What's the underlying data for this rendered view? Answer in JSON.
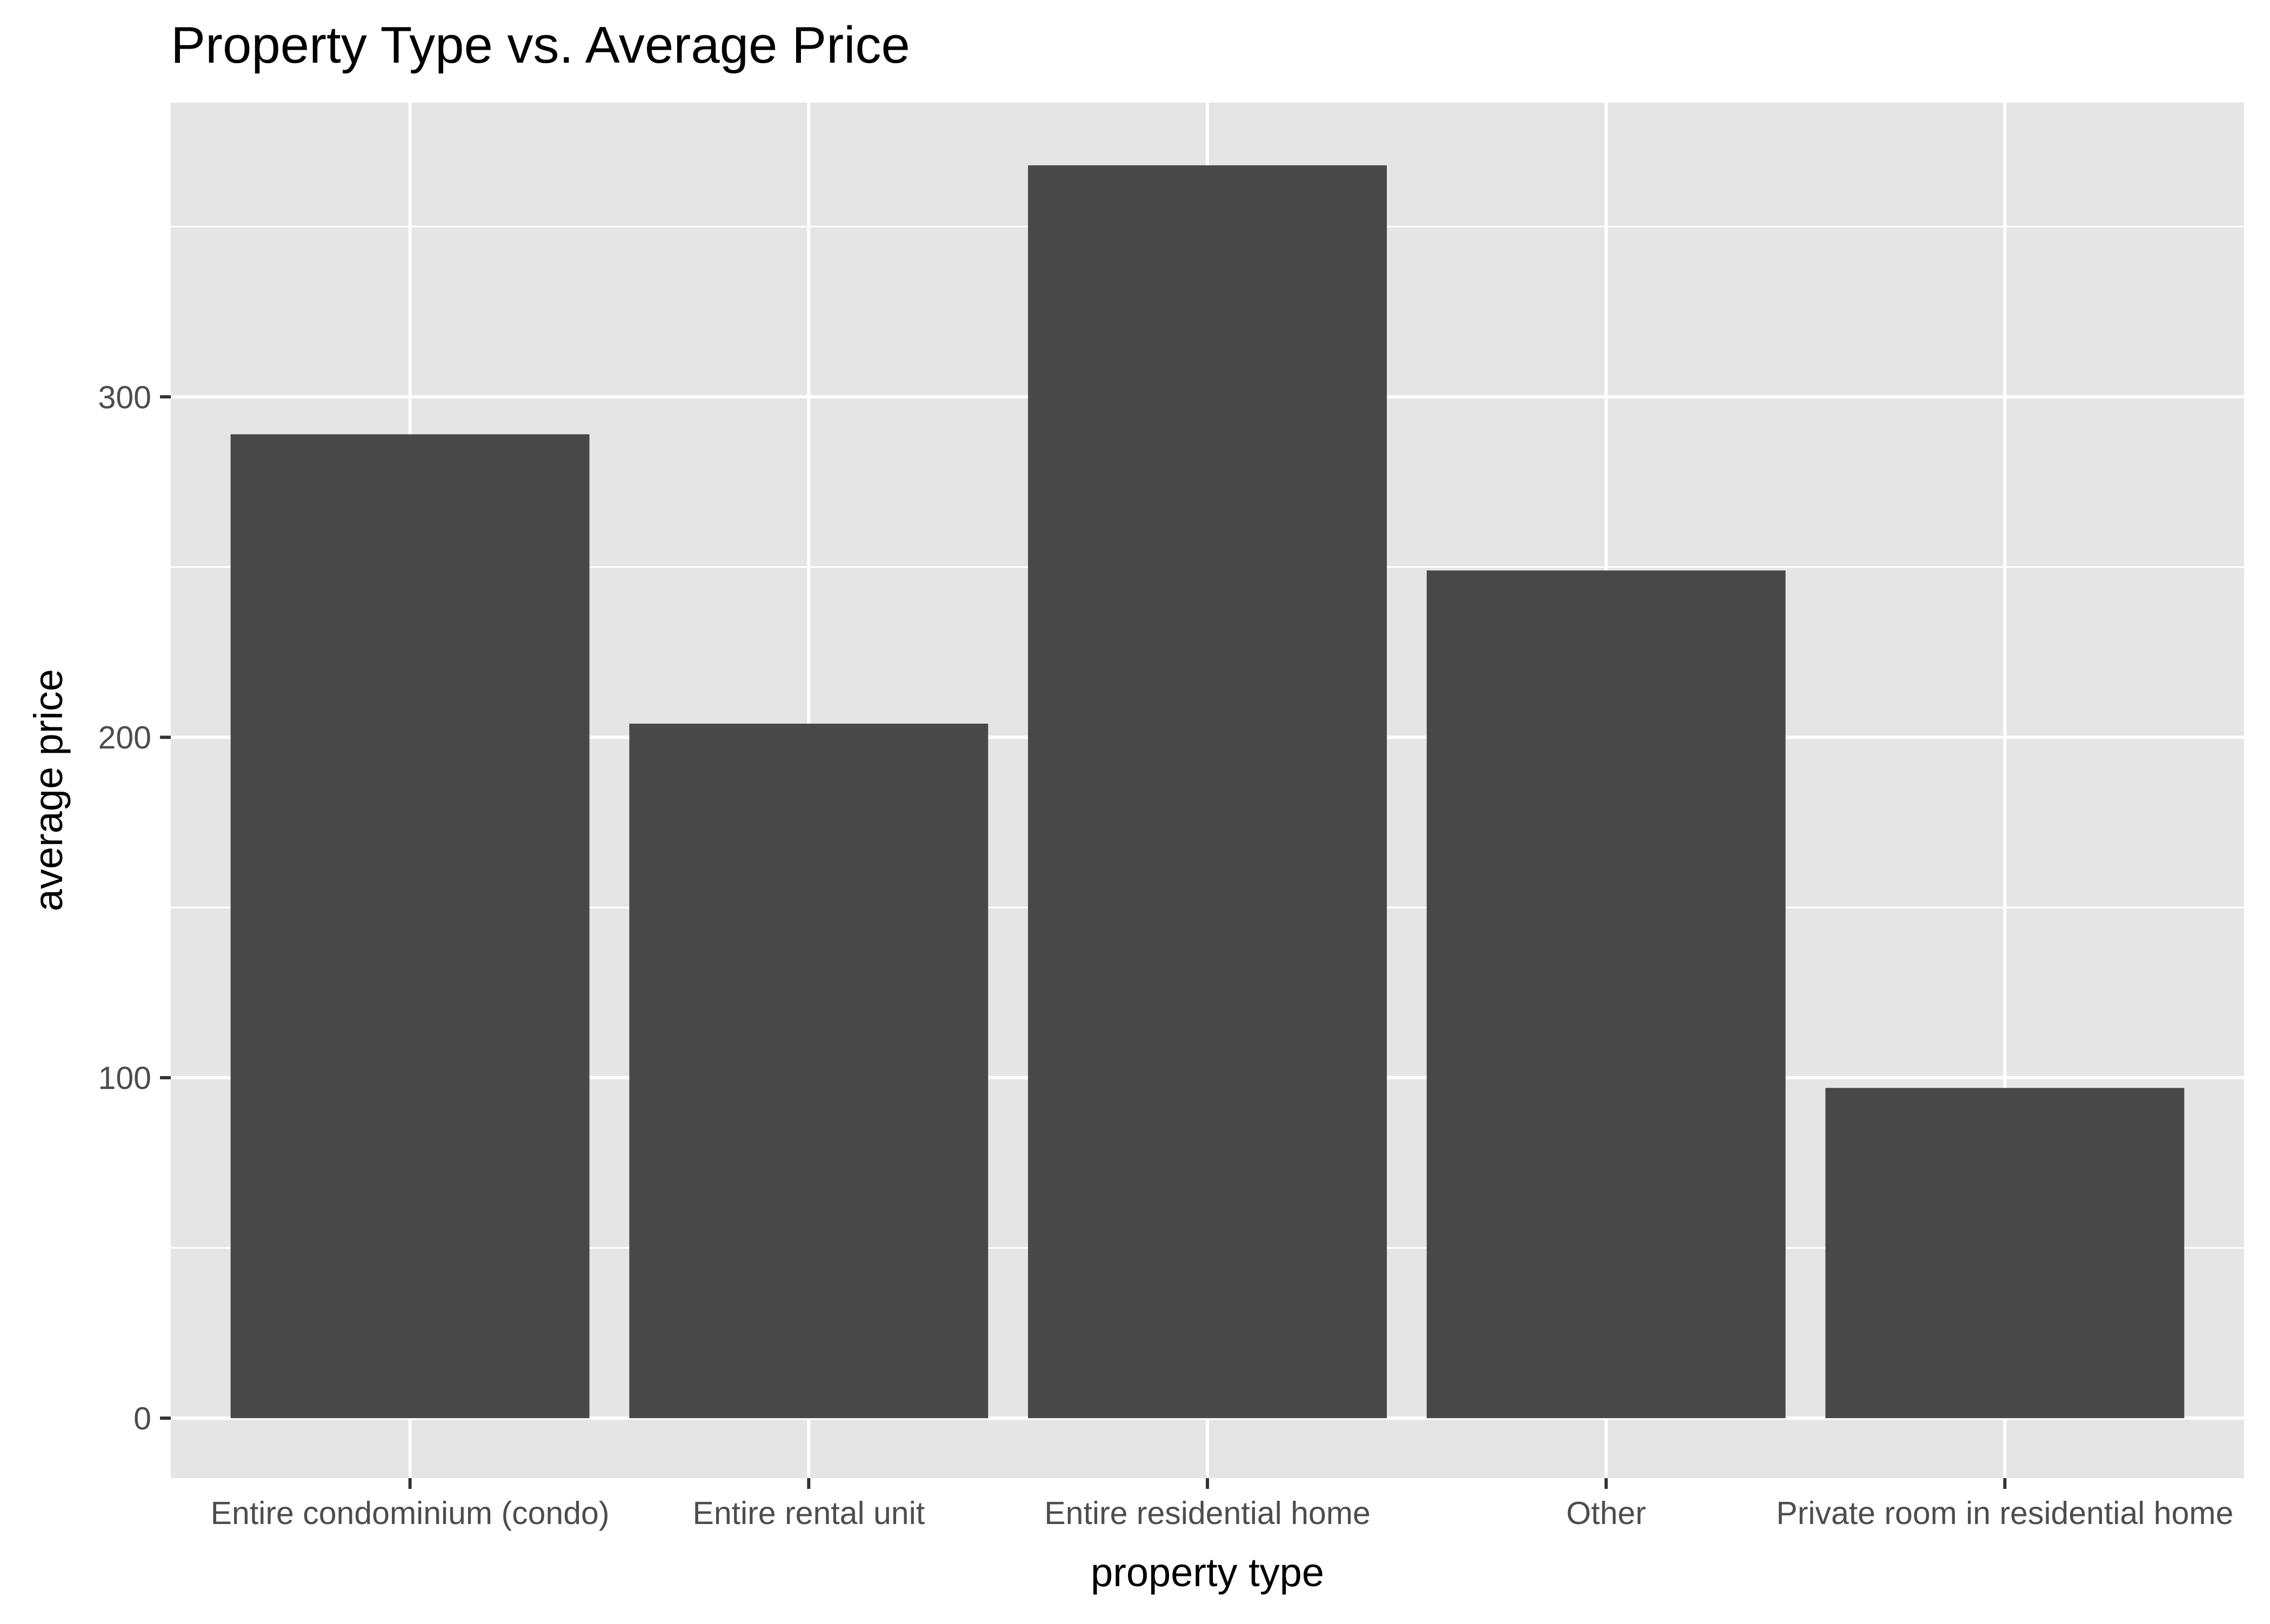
{
  "chart_data": {
    "type": "bar",
    "title": "Property Type vs. Average Price",
    "xlabel": "property type",
    "ylabel": "average price",
    "categories": [
      "Entire condominium (condo)",
      "Entire rental unit",
      "Entire residential home",
      "Other",
      "Private room in residential home"
    ],
    "values": [
      289,
      204,
      368,
      249,
      97
    ],
    "ylim": [
      -17.6,
      386.4
    ],
    "yticks": [
      0,
      100,
      200,
      300
    ],
    "ytick_labels": [
      "0",
      "100",
      "200",
      "300"
    ],
    "grid": true,
    "legend": "none",
    "colors": {
      "bar": "#484848",
      "panel": "#e5e5e5",
      "grid": "#ffffff"
    }
  }
}
